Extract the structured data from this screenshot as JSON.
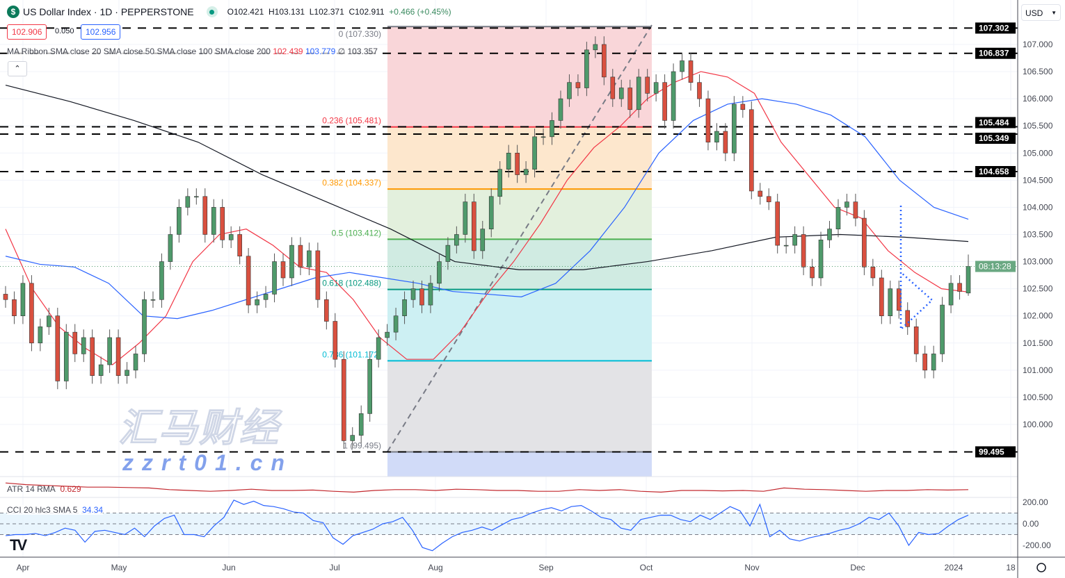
{
  "header": {
    "symbol_icon": "dollar-icon",
    "title": "US Dollar Index · 1D · PEPPERSTONE",
    "open": "O102.421",
    "high": "H103.131",
    "low": "L102.371",
    "close": "C102.911",
    "change": "+0.466 (+0.45%)",
    "bid": "102.906",
    "spread": "0.050",
    "ask": "102.956"
  },
  "currency_select": "USD",
  "ma_ribbon": {
    "label": "MA Ribbon SMA close 20 SMA close 50 SMA close 100 SMA close 200",
    "v20": "102.439",
    "v50": "103.779",
    "v100": "∅",
    "v200": "103.357"
  },
  "atr": {
    "label": "ATR 14 RMA",
    "value": "0.629"
  },
  "cci": {
    "label": "CCI 20 hlc3 SMA 5",
    "value": "34.34"
  },
  "countdown": "08:13:28",
  "watermark": {
    "cn": "汇马财经",
    "url": "zzrt01.cn"
  },
  "colors": {
    "up": "#4f9a6b",
    "down": "#d9503f",
    "sma20": "#f23645",
    "sma50": "#2962ff",
    "sma200": "#131722",
    "atr": "#c2272d",
    "cci": "#2962ff"
  },
  "chart_data": {
    "type": "candlestick",
    "ylim": [
      99.1,
      107.6
    ],
    "y_ticks": [
      "107.000",
      "106.500",
      "106.000",
      "105.500",
      "105.000",
      "104.500",
      "104.000",
      "103.500",
      "103.000",
      "102.500",
      "102.000",
      "101.500",
      "101.000",
      "100.500",
      "100.000"
    ],
    "x_ticks": [
      "Apr",
      "May",
      "Jun",
      "Jul",
      "Aug",
      "Sep",
      "Oct",
      "Nov",
      "Dec",
      "2024",
      "18"
    ],
    "last": {
      "open": 102.421,
      "high": 103.131,
      "low": 102.371,
      "close": 102.911
    },
    "closes": [
      102.3,
      102.0,
      102.6,
      101.5,
      101.8,
      102.0,
      100.8,
      101.7,
      101.3,
      101.6,
      100.9,
      101.1,
      101.6,
      100.9,
      101.0,
      101.3,
      102.3,
      102.3,
      103.0,
      103.5,
      104.0,
      104.2,
      104.2,
      103.5,
      104.0,
      103.4,
      103.5,
      103.1,
      102.2,
      102.3,
      102.4,
      103.0,
      102.7,
      103.3,
      102.9,
      103.2,
      102.3,
      101.9,
      101.2,
      99.7,
      99.8,
      100.2,
      101.2,
      101.6,
      101.7,
      102.0,
      102.3,
      102.5,
      102.2,
      102.6,
      103.0,
      103.3,
      103.5,
      104.1,
      103.2,
      103.6,
      104.2,
      104.7,
      105.0,
      104.6,
      104.7,
      105.3,
      105.3,
      105.6,
      106.0,
      106.3,
      106.2,
      106.9,
      107.0,
      106.4,
      106.0,
      106.2,
      105.8,
      106.4,
      106.1,
      106.3,
      105.6,
      106.5,
      106.7,
      106.3,
      106.0,
      105.2,
      105.4,
      105.0,
      105.9,
      105.8,
      104.3,
      104.2,
      104.1,
      103.3,
      103.3,
      103.5,
      102.9,
      102.7,
      103.4,
      103.6,
      104.0,
      104.1,
      103.8,
      102.9,
      102.7,
      102.0,
      102.5,
      102.1,
      101.8,
      101.3,
      101.0,
      101.3,
      102.2,
      102.6,
      102.45,
      102.911
    ],
    "series": [
      {
        "name": "SMA close 20",
        "values": [
          103.6,
          102.5,
          101.8,
          101.4,
          101.1,
          101.5,
          102.0,
          103.0,
          103.5,
          103.6,
          103.3,
          102.9,
          102.8,
          102.3,
          101.6,
          101.2,
          101.2,
          101.7,
          102.4,
          103.0,
          103.7,
          104.5,
          105.1,
          105.5,
          106.0,
          106.3,
          106.5,
          106.4,
          106.1,
          105.2,
          104.6,
          104.0,
          103.8,
          103.2,
          102.8,
          102.5,
          102.44
        ]
      },
      {
        "name": "SMA close 50",
        "values": [
          103.1,
          102.95,
          102.9,
          102.6,
          102.0,
          101.95,
          102.1,
          102.3,
          102.5,
          102.7,
          102.8,
          102.7,
          102.6,
          102.45,
          102.4,
          102.35,
          102.6,
          103.2,
          104.0,
          105.0,
          105.6,
          105.9,
          106.0,
          105.9,
          105.7,
          105.3,
          104.5,
          104.0,
          103.78
        ]
      },
      {
        "name": "SMA close 200",
        "values": [
          106.25,
          105.95,
          105.6,
          105.2,
          104.6,
          104.1,
          103.6,
          103.0,
          102.85,
          102.85,
          103.0,
          103.2,
          103.45,
          103.5,
          103.45,
          103.37
        ]
      }
    ],
    "horizontal_levels": [
      107.302,
      106.837,
      105.484,
      105.349,
      104.658,
      99.495
    ],
    "fibonacci": [
      {
        "ratio": "0",
        "price": "107.330",
        "color": "#787b86",
        "fill": "#f9d6d9"
      },
      {
        "ratio": "0.236",
        "price": "105.481",
        "color": "#f23645",
        "fill": "#fde7cd"
      },
      {
        "ratio": "0.382",
        "price": "104.337",
        "color": "#ff9800",
        "fill": "#e3f0dd"
      },
      {
        "ratio": "0.5",
        "price": "103.412",
        "color": "#4caf50",
        "fill": "#d0ebe2"
      },
      {
        "ratio": "0.618",
        "price": "102.488",
        "color": "#089981",
        "fill": "#cdf0f3"
      },
      {
        "ratio": "0.786",
        "price": "101.172",
        "color": "#00bcd4",
        "fill": "#e3e3e6"
      },
      {
        "ratio": "1",
        "price": "99.495",
        "color": "#787b86",
        "fill": "#d1dbf8"
      }
    ],
    "atr_values": [
      0.78,
      0.74,
      0.72,
      0.7,
      0.68,
      0.68,
      0.67,
      0.66,
      0.62,
      0.6,
      0.58,
      0.6,
      0.63,
      0.6,
      0.6,
      0.61,
      0.58,
      0.56,
      0.6,
      0.62,
      0.62,
      0.6,
      0.63,
      0.62,
      0.6,
      0.6,
      0.58,
      0.58,
      0.62,
      0.6,
      0.62,
      0.58,
      0.56,
      0.6,
      0.6,
      0.59,
      0.6,
      0.58,
      0.66,
      0.63,
      0.62,
      0.6,
      0.58,
      0.6,
      0.6,
      0.62,
      0.61,
      0.62
    ],
    "cci_values": [
      -110,
      -100,
      -100,
      -90,
      -110,
      -80,
      -40,
      -60,
      -170,
      -70,
      -60,
      -80,
      -100,
      -40,
      -120,
      -20,
      50,
      80,
      -100,
      -100,
      -120,
      -20,
      60,
      220,
      180,
      210,
      170,
      160,
      140,
      110,
      100,
      30,
      10,
      -130,
      -190,
      -110,
      -80,
      -50,
      0,
      20,
      60,
      -60,
      -220,
      -250,
      -180,
      -120,
      -80,
      -60,
      -30,
      -60,
      -10,
      40,
      60,
      100,
      130,
      150,
      120,
      160,
      170,
      120,
      60,
      40,
      -40,
      -60,
      40,
      60,
      80,
      80,
      40,
      20,
      80,
      40,
      100,
      160,
      120,
      -20,
      180,
      -120,
      -60,
      -140,
      -160,
      -130,
      -110,
      -90,
      -60,
      -40,
      0,
      60,
      40,
      100,
      -20,
      -200,
      -80,
      -100,
      -90,
      -20,
      40,
      80
    ]
  }
}
